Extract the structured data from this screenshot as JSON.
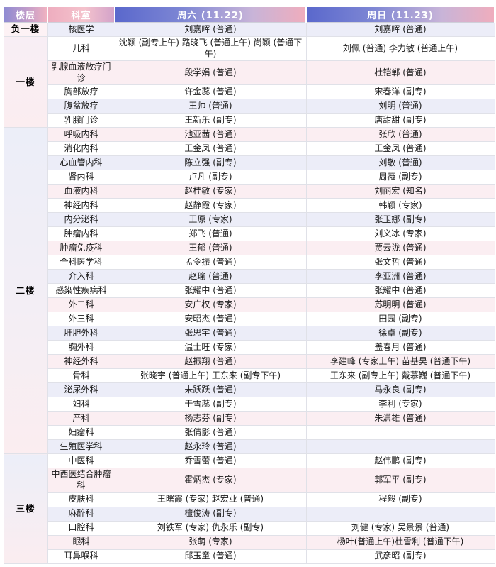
{
  "headers": {
    "floor": "楼层",
    "dept": "科室",
    "sat": "周六 (11.22)",
    "sun": "周日 (11.23)"
  },
  "colors": {
    "header_day_gradient_start": "#5a68cc",
    "header_day_gradient_end": "#efadbd",
    "header_floor_gradient_start": "#8f8bd2",
    "header_floor_gradient_end": "#f0b2c1",
    "header_dept_pink": "#eeadbf",
    "stripe_lavender": "#ecedf8",
    "stripe_pink": "#fbeef2",
    "header_text": "#ffffff",
    "body_text": "#1a1a1a"
  },
  "floors": [
    {
      "label": "负一楼",
      "rows": [
        {
          "dept": "核医学",
          "sat": "刘嘉晖 (普通)",
          "sun": "刘嘉晖 (普通)"
        }
      ]
    },
    {
      "label": "一楼",
      "rows": [
        {
          "dept": "儿科",
          "sat": "沈颖 (副专上午) 路晓飞 (普通上午) 尚颖 (普通下午)",
          "sun": "刘佩 (普通) 李力敏 (普通上午)"
        },
        {
          "dept": "乳腺血液放疗门诊",
          "sat": "段学娟 (普通)",
          "sun": "杜铠郸 (普通)"
        },
        {
          "dept": "胸部放疗",
          "sat": "许金蕊 (普通)",
          "sun": "宋春洋 (副专)"
        },
        {
          "dept": "腹盆放疗",
          "sat": "王帅 (普通)",
          "sun": "刘明 (普通)"
        },
        {
          "dept": "乳腺门诊",
          "sat": "王新乐 (副专)",
          "sun": "唐甜甜 (副专)"
        }
      ]
    },
    {
      "label": "二楼",
      "rows": [
        {
          "dept": "呼吸内科",
          "sat": "池亚茜 (普通)",
          "sun": "张欣 (普通)"
        },
        {
          "dept": "消化内科",
          "sat": "王金凤 (普通)",
          "sun": "王金凤 (普通)"
        },
        {
          "dept": "心血管内科",
          "sat": "陈立强 (副专)",
          "sun": "刘敬 (普通)"
        },
        {
          "dept": "肾内科",
          "sat": "卢凡 (副专)",
          "sun": "周薇 (副专)"
        },
        {
          "dept": "血液内科",
          "sat": "赵桂敏 (专家)",
          "sun": "刘丽宏 (知名)"
        },
        {
          "dept": "神经内科",
          "sat": "赵静霞 (专家)",
          "sun": "韩颖 (专家)"
        },
        {
          "dept": "内分泌科",
          "sat": "王原 (专家)",
          "sun": "张玉娜 (副专)"
        },
        {
          "dept": "肿瘤内科",
          "sat": "郑飞 (普通)",
          "sun": "刘义冰 (专家)"
        },
        {
          "dept": "肿瘤免疫科",
          "sat": "王郁 (普通)",
          "sun": "贾云泷 (普通)"
        },
        {
          "dept": "全科医学科",
          "sat": "孟令振 (普通)",
          "sun": "张文哲 (普通)"
        },
        {
          "dept": "介入科",
          "sat": "赵瑜 (普通)",
          "sun": "李亚洲 (普通)"
        },
        {
          "dept": "感染性疾病科",
          "sat": "张耀中 (普通)",
          "sun": "张耀中 (普通)"
        },
        {
          "dept": "外二科",
          "sat": "安广权 (专家)",
          "sun": "苏明明 (普通)"
        },
        {
          "dept": "外三科",
          "sat": "安昭杰 (普通)",
          "sun": "田园 (副专)"
        },
        {
          "dept": "肝胆外科",
          "sat": "张思宇 (普通)",
          "sun": "徐卓 (副专)"
        },
        {
          "dept": "胸外科",
          "sat": "温士旺 (专家)",
          "sun": "盖春月 (普通)"
        },
        {
          "dept": "神经外科",
          "sat": "赵振翔 (普通)",
          "sun": "李建峰 (专家上午) 苗基昊 (普通下午)"
        },
        {
          "dept": "骨科",
          "sat": "张晓宇 (普通上午) 王东来 (副专下午)",
          "sun": "王东来 (副专上午) 戴慕巍 (普通下午)"
        },
        {
          "dept": "泌尿外科",
          "sat": "未跃跃 (普通)",
          "sun": "马永良 (副专)"
        },
        {
          "dept": "妇科",
          "sat": "于雪蕊 (副专)",
          "sun": "李利 (专家)"
        },
        {
          "dept": "产科",
          "sat": "杨志芬 (副专)",
          "sun": "朱潇雄 (普通)"
        },
        {
          "dept": "妇瘤科",
          "sat": "张倩影 (普通)",
          "sun": ""
        },
        {
          "dept": "生殖医学科",
          "sat": "赵永玲 (普通)",
          "sun": ""
        }
      ]
    },
    {
      "label": "三楼",
      "rows": [
        {
          "dept": "中医科",
          "sat": "乔雪蕾 (普通)",
          "sun": "赵伟鹏 (副专)"
        },
        {
          "dept": "中西医结合肿瘤科",
          "sat": "霍炳杰 (专家)",
          "sun": "郭军平 (副专)"
        },
        {
          "dept": "皮肤科",
          "sat": "王曙霞 (专家) 赵宏业 (普通)",
          "sun": "程毅 (副专)"
        },
        {
          "dept": "麻醉科",
          "sat": "檀俊涛 (副专)",
          "sun": ""
        },
        {
          "dept": "口腔科",
          "sat": "刘铁军 (专家) 仇永乐 (副专)",
          "sun": "刘健 (专家) 吴景景 (普通)"
        },
        {
          "dept": "眼科",
          "sat": "张萌 (专家)",
          "sun": "杨叶(普通上午)杜雪利 (普通下午)"
        },
        {
          "dept": "耳鼻喉科",
          "sat": "邱玉童 (普通)",
          "sun": "武彦昭 (副专)"
        }
      ]
    }
  ]
}
